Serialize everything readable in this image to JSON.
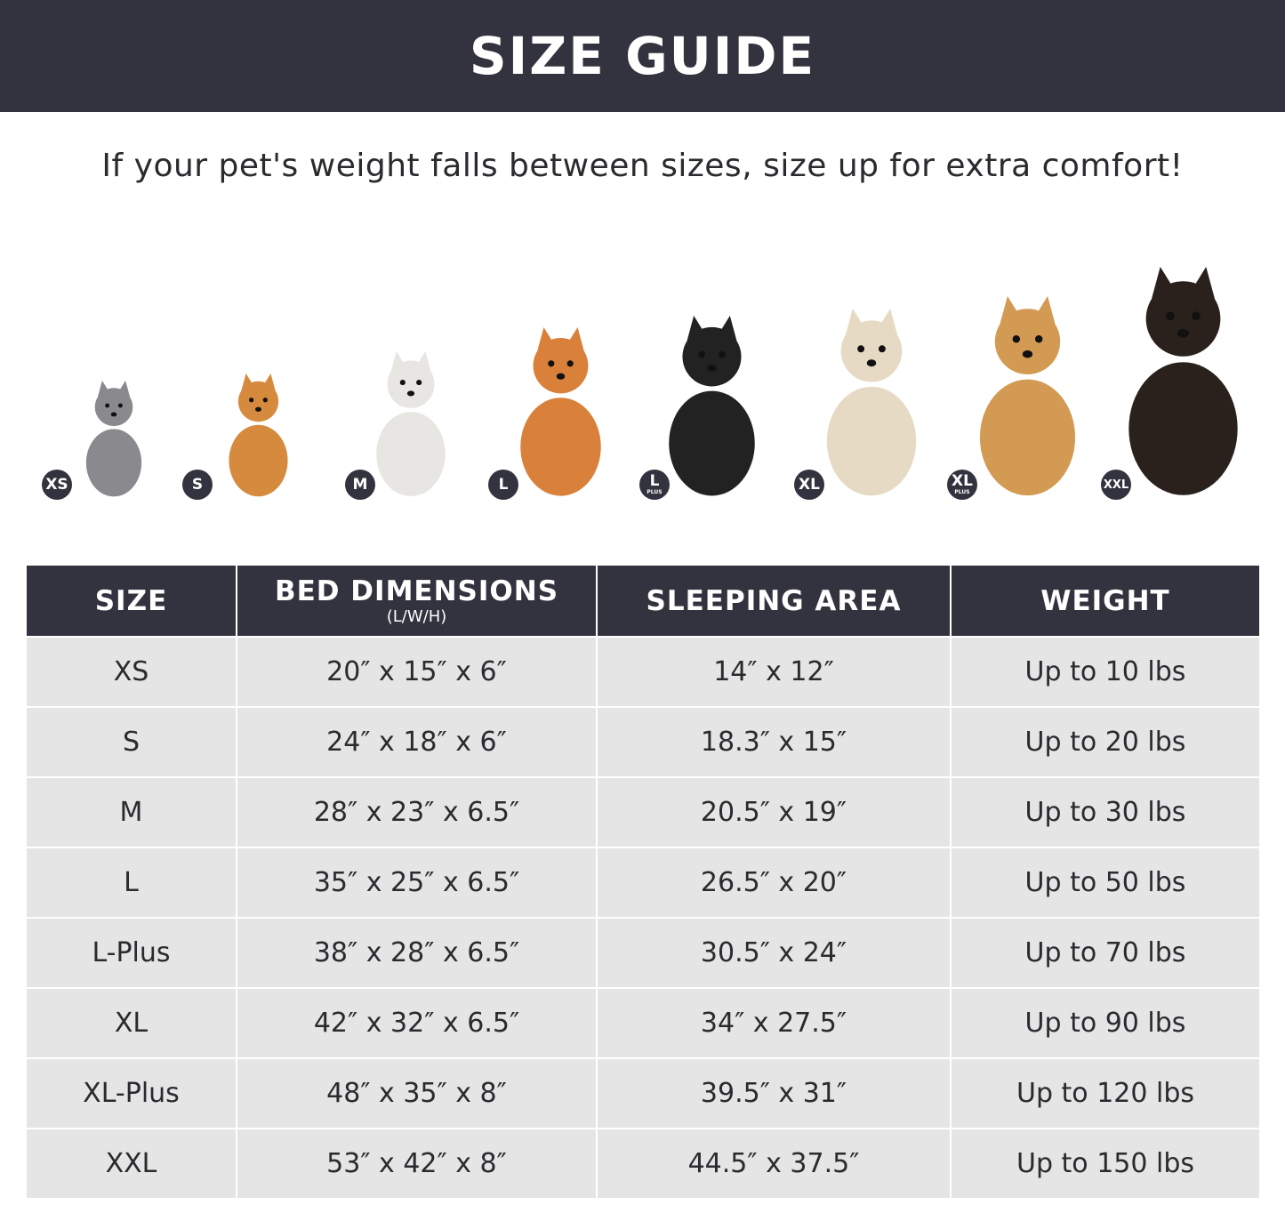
{
  "banner": {
    "title": "SIZE GUIDE"
  },
  "tip": "If your pet's weight falls between sizes, size up for extra comfort!",
  "pets": [
    {
      "badge": "XS",
      "badge_sub": "",
      "animal": "cat",
      "color": "#8a8a8e"
    },
    {
      "badge": "S",
      "badge_sub": "",
      "animal": "pomeranian",
      "color": "#d58a3e"
    },
    {
      "badge": "M",
      "badge_sub": "",
      "animal": "french-bulldog",
      "color": "#e8e6e2"
    },
    {
      "badge": "L",
      "badge_sub": "",
      "animal": "shiba-inu",
      "color": "#d9813a"
    },
    {
      "badge": "L",
      "badge_sub": "PLUS",
      "animal": "border-collie",
      "color": "#222222"
    },
    {
      "badge": "XL",
      "badge_sub": "",
      "animal": "labrador",
      "color": "#e6dac4"
    },
    {
      "badge": "XL",
      "badge_sub": "PLUS",
      "animal": "golden-retriever",
      "color": "#d29a52"
    },
    {
      "badge": "XXL",
      "badge_sub": "",
      "animal": "doberman",
      "color": "#2b211c"
    }
  ],
  "table": {
    "headers": [
      "SIZE",
      "BED DIMENSIONS",
      "SLEEPING AREA",
      "WEIGHT"
    ],
    "header_sub": "(L/W/H)",
    "rows": [
      [
        "XS",
        "20″ x 15″ x 6″",
        "14″ x 12″",
        "Up to 10 lbs"
      ],
      [
        "S",
        "24″ x 18″ x 6″",
        "18.3″ x 15″",
        "Up to 20 lbs"
      ],
      [
        "M",
        "28″ x 23″ x 6.5″",
        "20.5″ x 19″",
        "Up to 30 lbs"
      ],
      [
        "L",
        "35″ x 25″ x 6.5″",
        "26.5″ x 20″",
        "Up to 50 lbs"
      ],
      [
        "L-Plus",
        "38″ x 28″ x 6.5″",
        "30.5″ x 24″",
        "Up to 70 lbs"
      ],
      [
        "XL",
        "42″ x 32″ x 6.5″",
        "34″ x 27.5″",
        "Up to 90 lbs"
      ],
      [
        "XL-Plus",
        "48″ x 35″ x 8″",
        "39.5″ x 31″",
        "Up to 120 lbs"
      ],
      [
        "XXL",
        "53″ x 42″ x 8″",
        "44.5″ x 37.5″",
        "Up to 150 lbs"
      ]
    ]
  }
}
